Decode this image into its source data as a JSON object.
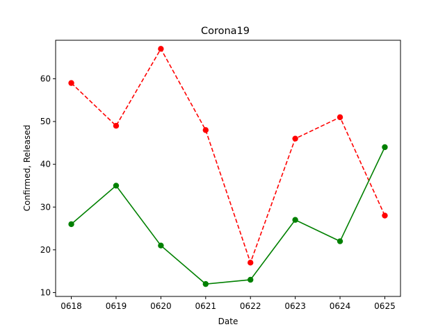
{
  "chart_data": {
    "type": "line",
    "title": "Corona19",
    "xlabel": "Date",
    "ylabel": "Confirmed, Released",
    "categories": [
      "0618",
      "0619",
      "0620",
      "0621",
      "0622",
      "0623",
      "0624",
      "0625"
    ],
    "ylim": [
      9.1,
      69.0
    ],
    "yticks": [
      10,
      20,
      30,
      40,
      50,
      60
    ],
    "grid": false,
    "series": [
      {
        "values": [
          59,
          49,
          67,
          48,
          17,
          46,
          51,
          28
        ],
        "color": "#ff0000",
        "linestyle": "dashed",
        "marker": "circle"
      },
      {
        "values": [
          26,
          35,
          21,
          12,
          13,
          27,
          22,
          44
        ],
        "color": "#008000",
        "linestyle": "solid",
        "marker": "circle"
      }
    ]
  }
}
